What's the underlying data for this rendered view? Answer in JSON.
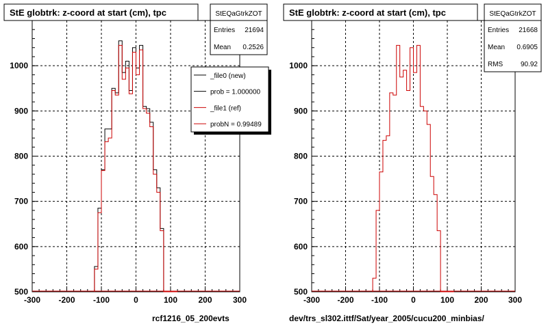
{
  "chart_data": [
    {
      "type": "histogram-step",
      "title": "StE globtrk: z-coord at start (cm), tpc",
      "xlabel": "rcf1216_05_200evts",
      "xlim": [
        -300,
        300
      ],
      "ylim": [
        500,
        1100
      ],
      "xticks": [
        "-300",
        "-200",
        "-100",
        "0",
        "100",
        "200",
        "300"
      ],
      "yticks": [
        "500",
        "600",
        "700",
        "800",
        "900",
        "1000"
      ],
      "grid": true,
      "bin_edges": [
        -120,
        -110,
        -100,
        -90,
        -80,
        -70,
        -60,
        -50,
        -40,
        -30,
        -20,
        -10,
        0,
        10,
        20,
        30,
        40,
        50,
        60,
        70,
        80,
        90,
        100,
        110,
        120
      ],
      "series": [
        {
          "name": "_file0 (new)",
          "color": "#000000",
          "values": [
            556,
            685,
            770,
            860,
            860,
            950,
            940,
            1055,
            985,
            1010,
            945,
            1040,
            995,
            1045,
            910,
            905,
            875,
            770,
            730,
            640,
            490,
            490,
            490,
            490
          ]
        },
        {
          "name": "_file1 (ref)",
          "color": "#cc0000",
          "values": [
            550,
            675,
            768,
            832,
            840,
            945,
            935,
            1045,
            970,
            995,
            938,
            1030,
            980,
            1035,
            905,
            895,
            865,
            760,
            720,
            635,
            490,
            490,
            490,
            490
          ]
        }
      ],
      "stats": {
        "name": "StEQaGtrkZOT",
        "rows": [
          {
            "label": "Entries",
            "value": "21694"
          },
          {
            "label": "Mean",
            "value": "0.2526"
          }
        ]
      },
      "legend": {
        "placement": "top-right",
        "entries": [
          {
            "text": "_file0 (new)",
            "color": "#000000"
          },
          {
            "text": "prob = 1.000000",
            "color": "#000000"
          },
          {
            "text": "_file1 (ref)",
            "color": "#cc0000"
          },
          {
            "text": "probN = 0.99489",
            "color": "#cc0000"
          }
        ]
      }
    },
    {
      "type": "histogram-step",
      "title": "StE globtrk: z-coord at start (cm), tpc",
      "xlabel": "dev/trs_sl302.ittf/Sat/year_2005/cucu200_minbias/",
      "xlim": [
        -300,
        300
      ],
      "ylim": [
        500,
        1100
      ],
      "xticks": [
        "-300",
        "-200",
        "-100",
        "0",
        "100",
        "200",
        "300"
      ],
      "yticks": [
        "500",
        "600",
        "700",
        "800",
        "900",
        "1000"
      ],
      "grid": true,
      "bin_edges": [
        -120,
        -110,
        -100,
        -90,
        -80,
        -70,
        -60,
        -50,
        -40,
        -30,
        -20,
        -10,
        0,
        10,
        20,
        30,
        40,
        50,
        60,
        70,
        80,
        90,
        100,
        110,
        120
      ],
      "series": [
        {
          "name": "",
          "color": "#cc0000",
          "values": [
            530,
            680,
            765,
            835,
            845,
            940,
            935,
            1045,
            975,
            990,
            945,
            1040,
            985,
            1045,
            910,
            900,
            870,
            755,
            715,
            635,
            490,
            490,
            490,
            490
          ]
        }
      ],
      "stats": {
        "name": "StEQaGtrkZOT",
        "rows": [
          {
            "label": "Entries",
            "value": "21668"
          },
          {
            "label": "Mean",
            "value": "0.6905"
          },
          {
            "label": "RMS",
            "value": "90.92"
          }
        ]
      }
    }
  ]
}
